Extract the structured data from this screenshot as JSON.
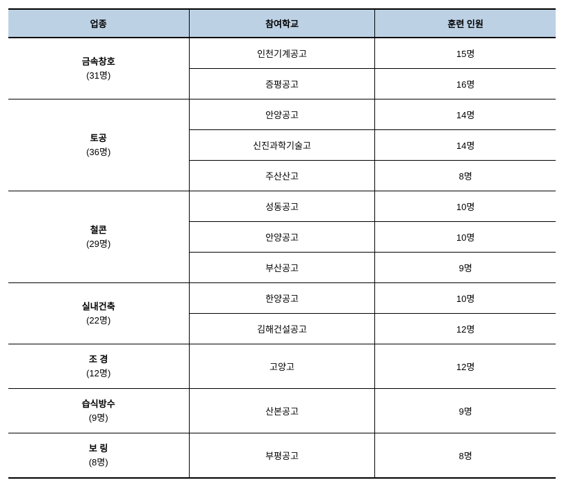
{
  "colors": {
    "header_bg": "#bdd1e5",
    "border": "#000000",
    "background": "#ffffff",
    "text": "#000000"
  },
  "typography": {
    "font_family": "Malgun Gothic",
    "header_fontsize_pt": 10,
    "body_fontsize_pt": 10,
    "header_weight": "bold"
  },
  "table": {
    "type": "table",
    "col_widths_pct": [
      33,
      34,
      33
    ],
    "headers": [
      "업종",
      "참여학교",
      "훈련 인원"
    ],
    "groups": [
      {
        "category": "금속창호",
        "subtotal": "(31명)",
        "rows": [
          {
            "school": "인천기계공고",
            "count": "15명"
          },
          {
            "school": "증평공고",
            "count": "16명"
          }
        ]
      },
      {
        "category": "토공",
        "subtotal": "(36명)",
        "rows": [
          {
            "school": "안양공고",
            "count": "14명"
          },
          {
            "school": "신진과학기술고",
            "count": "14명"
          },
          {
            "school": "주산산고",
            "count": "8명"
          }
        ]
      },
      {
        "category": "철콘",
        "subtotal": "(29명)",
        "rows": [
          {
            "school": "성동공고",
            "count": "10명"
          },
          {
            "school": "안양공고",
            "count": "10명"
          },
          {
            "school": "부산공고",
            "count": "9명"
          }
        ]
      },
      {
        "category": "실내건축",
        "subtotal": "(22명)",
        "rows": [
          {
            "school": "한양공고",
            "count": "10명"
          },
          {
            "school": "김해건설공고",
            "count": "12명"
          }
        ]
      },
      {
        "category": "조 경",
        "subtotal": "(12명)",
        "rows": [
          {
            "school": "고양고",
            "count": "12명"
          }
        ]
      },
      {
        "category": "습식방수",
        "subtotal": "(9명)",
        "rows": [
          {
            "school": "산본공고",
            "count": "9명"
          }
        ]
      },
      {
        "category": "보 링",
        "subtotal": "(8명)",
        "rows": [
          {
            "school": "부평공고",
            "count": "8명"
          }
        ]
      }
    ]
  }
}
